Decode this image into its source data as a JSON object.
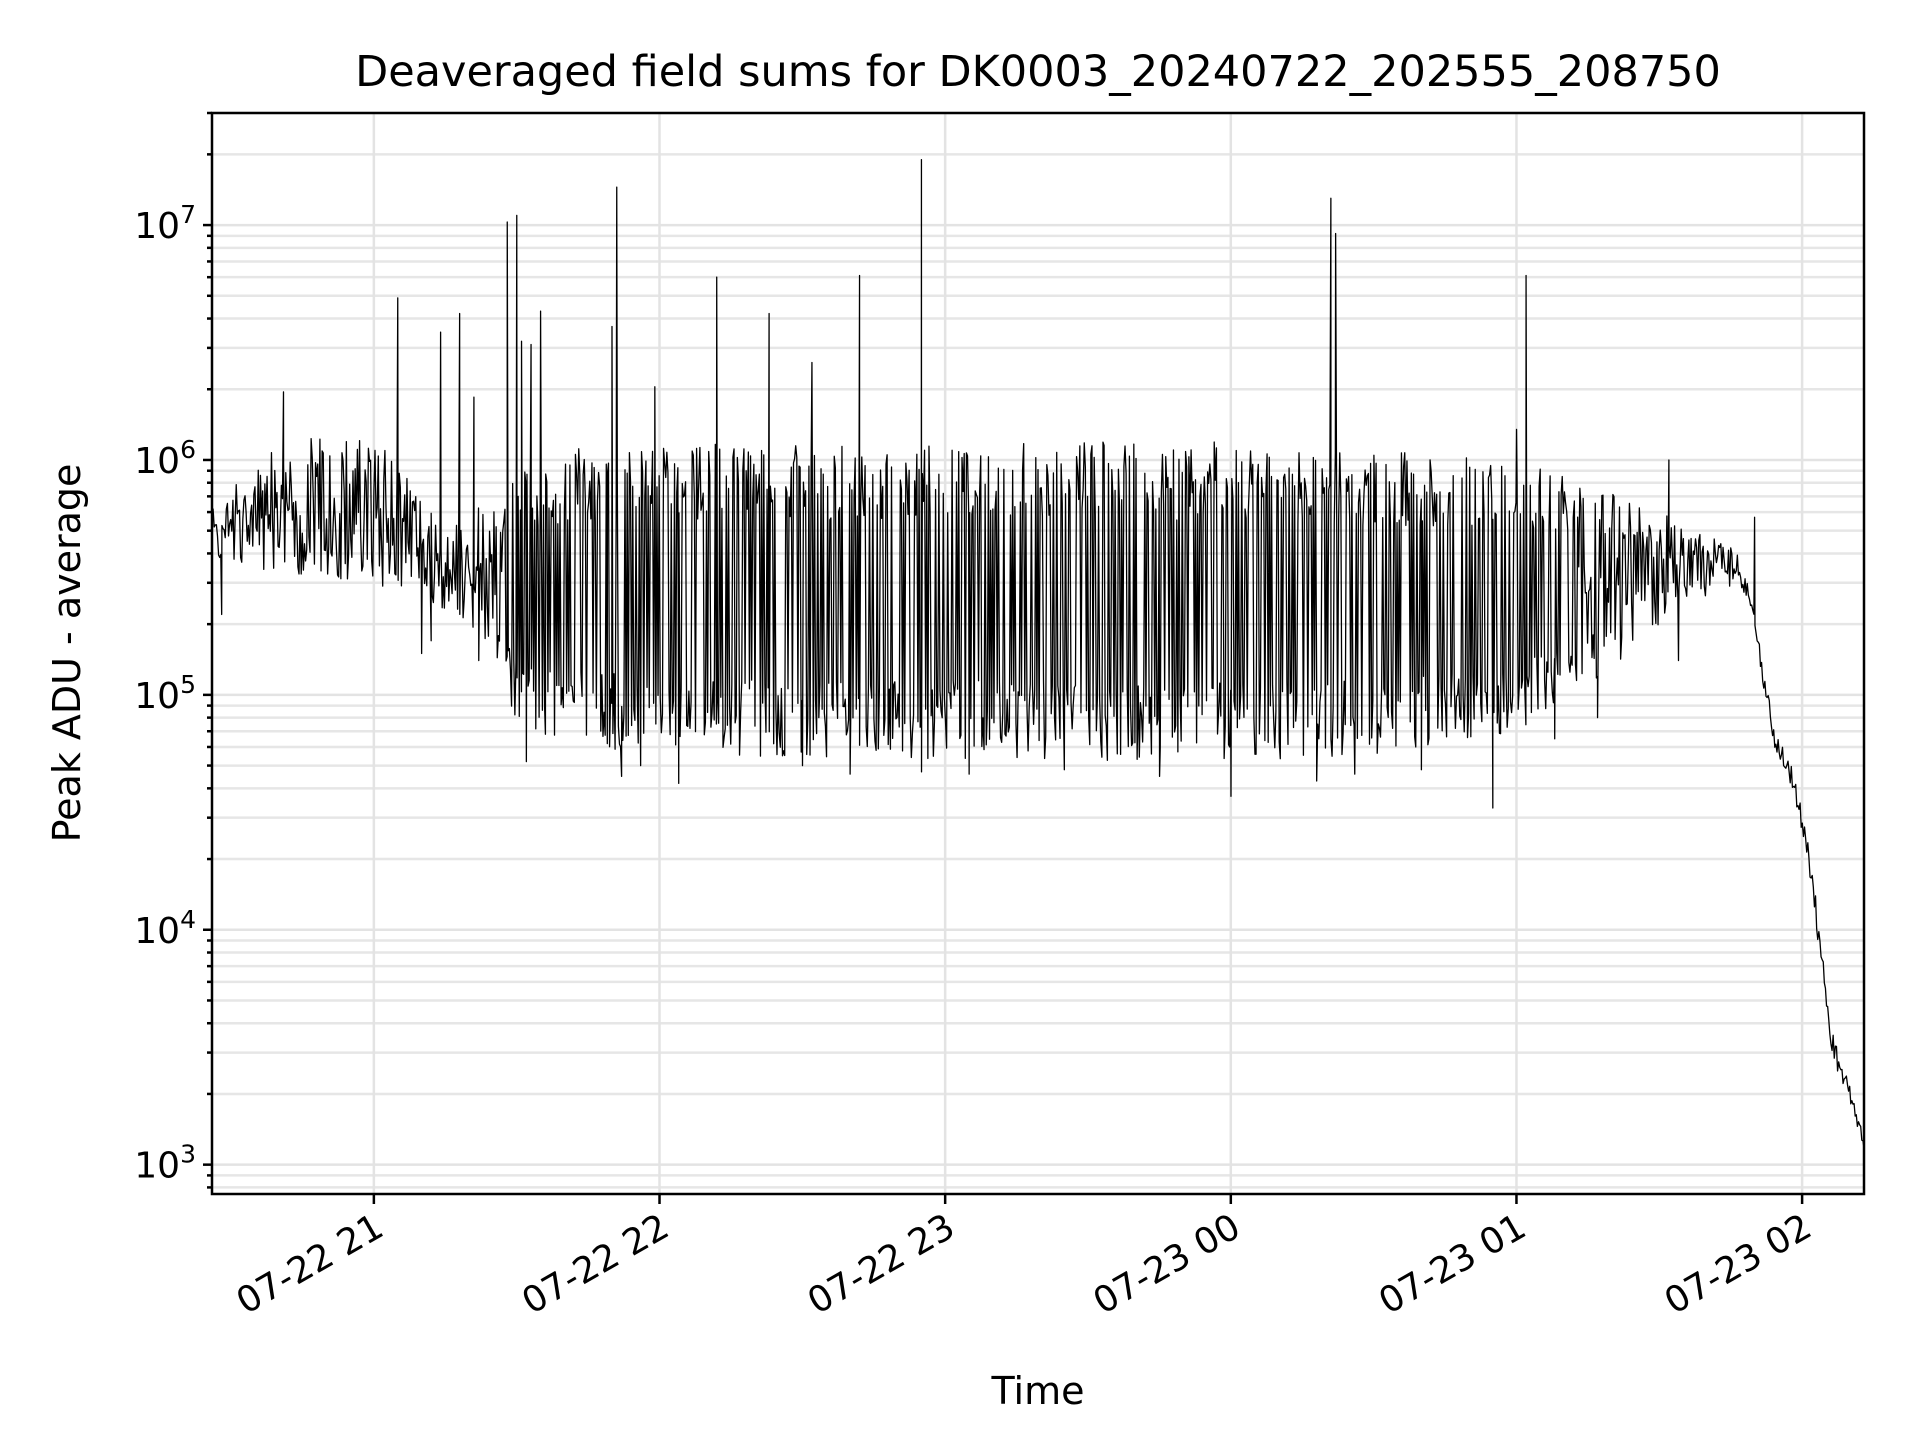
{
  "chart_data": {
    "type": "line",
    "title": "Deaveraged field sums for DK0003_20240722_202555_208750",
    "xlabel": "Time",
    "ylabel": "Peak ADU - average",
    "yscale": "log",
    "grid": "both",
    "x_range": [
      "2024-07-22 20:26",
      "2024-07-23 02:13"
    ],
    "ylim": [
      750,
      30000000
    ],
    "x_ticks": [
      {
        "time": "2024-07-22 21:00",
        "label": "07-22 21"
      },
      {
        "time": "2024-07-22 22:00",
        "label": "07-22 22"
      },
      {
        "time": "2024-07-22 23:00",
        "label": "07-22 23"
      },
      {
        "time": "2024-07-23 00:00",
        "label": "07-23 00"
      },
      {
        "time": "2024-07-23 01:00",
        "label": "07-23 01"
      },
      {
        "time": "2024-07-23 02:00",
        "label": "07-23 02"
      }
    ],
    "y_ticks": [
      {
        "value": 1000,
        "base": "10",
        "exp": "3"
      },
      {
        "value": 10000,
        "base": "10",
        "exp": "4"
      },
      {
        "value": 100000,
        "base": "10",
        "exp": "5"
      },
      {
        "value": 1000000,
        "base": "10",
        "exp": "6"
      },
      {
        "value": 10000000,
        "base": "10",
        "exp": "7"
      }
    ],
    "series": [
      {
        "color": "#000000",
        "envelope": [
          {
            "time": "2024-07-22 20:26",
            "low": 380000,
            "high": 620000
          },
          {
            "time": "2024-07-22 20:40",
            "low": 330000,
            "high": 1200000
          },
          {
            "time": "2024-07-22 21:00",
            "low": 300000,
            "high": 1300000
          },
          {
            "time": "2024-07-22 21:15",
            "low": 230000,
            "high": 500000
          },
          {
            "time": "2024-07-22 21:25",
            "low": 160000,
            "high": 700000
          },
          {
            "time": "2024-07-22 21:30",
            "low": 70000,
            "high": 1000000
          },
          {
            "time": "2024-07-22 21:45",
            "low": 60000,
            "high": 1150000
          },
          {
            "time": "2024-07-22 22:00",
            "low": 55000,
            "high": 1200000
          },
          {
            "time": "2024-07-23 00:00",
            "low": 52000,
            "high": 1200000
          },
          {
            "time": "2024-07-23 00:30",
            "low": 55000,
            "high": 1100000
          },
          {
            "time": "2024-07-23 01:00",
            "low": 70000,
            "high": 1000000
          },
          {
            "time": "2024-07-23 01:20",
            "low": 130000,
            "high": 750000
          },
          {
            "time": "2024-07-23 01:35",
            "low": 250000,
            "high": 550000
          },
          {
            "time": "2024-07-23 01:46",
            "low": 280000,
            "high": 420000
          },
          {
            "time": "2024-07-23 01:49",
            "low": 250000,
            "high": 280000
          },
          {
            "time": "2024-07-23 01:52",
            "low": 100000,
            "high": 130000
          },
          {
            "time": "2024-07-23 01:54",
            "low": 60000,
            "high": 75000
          },
          {
            "time": "2024-07-23 01:58",
            "low": 40000,
            "high": 50000
          },
          {
            "time": "2024-07-23 02:02",
            "low": 15000,
            "high": 20000
          },
          {
            "time": "2024-07-23 02:06",
            "low": 3000,
            "high": 4000
          },
          {
            "time": "2024-07-23 02:10",
            "low": 1800,
            "high": 2200
          },
          {
            "time": "2024-07-23 02:13",
            "low": 1150,
            "high": 1300
          }
        ],
        "spikes": [
          {
            "time": "2024-07-22 20:41",
            "value": 1950000
          },
          {
            "time": "2024-07-22 21:05",
            "value": 4900000
          },
          {
            "time": "2024-07-22 21:14",
            "value": 3500000
          },
          {
            "time": "2024-07-22 21:18",
            "value": 4200000
          },
          {
            "time": "2024-07-22 21:21",
            "value": 1850000
          },
          {
            "time": "2024-07-22 21:28",
            "value": 10300000
          },
          {
            "time": "2024-07-22 21:30",
            "value": 11000000
          },
          {
            "time": "2024-07-22 21:31",
            "value": 3200000
          },
          {
            "time": "2024-07-22 21:33",
            "value": 3100000
          },
          {
            "time": "2024-07-22 21:35",
            "value": 4300000
          },
          {
            "time": "2024-07-22 21:50",
            "value": 3700000
          },
          {
            "time": "2024-07-22 21:51",
            "value": 14500000
          },
          {
            "time": "2024-07-22 21:59",
            "value": 2050000
          },
          {
            "time": "2024-07-22 22:12",
            "value": 6000000
          },
          {
            "time": "2024-07-22 22:23",
            "value": 4200000
          },
          {
            "time": "2024-07-22 22:32",
            "value": 2600000
          },
          {
            "time": "2024-07-22 22:42",
            "value": 6100000
          },
          {
            "time": "2024-07-22 22:55",
            "value": 19000000
          },
          {
            "time": "2024-07-23 00:21",
            "value": 13000000
          },
          {
            "time": "2024-07-23 00:22",
            "value": 9200000
          },
          {
            "time": "2024-07-23 01:00",
            "value": 1350000
          },
          {
            "time": "2024-07-23 01:02",
            "value": 6100000
          },
          {
            "time": "2024-07-23 01:32",
            "value": 1000000
          },
          {
            "time": "2024-07-23 01:50",
            "value": 570000
          }
        ],
        "dips": [
          {
            "time": "2024-07-22 20:28",
            "value": 220000
          },
          {
            "time": "2024-07-22 21:10",
            "value": 150000
          },
          {
            "time": "2024-07-22 21:12",
            "value": 170000
          },
          {
            "time": "2024-07-22 21:22",
            "value": 140000
          },
          {
            "time": "2024-07-22 21:32",
            "value": 52000
          },
          {
            "time": "2024-07-22 21:36",
            "value": 68000
          },
          {
            "time": "2024-07-22 21:49",
            "value": 62000
          },
          {
            "time": "2024-07-22 21:52",
            "value": 45000
          },
          {
            "time": "2024-07-22 21:56",
            "value": 50000
          },
          {
            "time": "2024-07-22 22:04",
            "value": 42000
          },
          {
            "time": "2024-07-22 22:30",
            "value": 50000
          },
          {
            "time": "2024-07-22 22:40",
            "value": 46000
          },
          {
            "time": "2024-07-22 22:55",
            "value": 47000
          },
          {
            "time": "2024-07-22 23:05",
            "value": 46000
          },
          {
            "time": "2024-07-22 23:25",
            "value": 48000
          },
          {
            "time": "2024-07-22 23:45",
            "value": 45000
          },
          {
            "time": "2024-07-23 00:00",
            "value": 37000
          },
          {
            "time": "2024-07-23 00:18",
            "value": 43000
          },
          {
            "time": "2024-07-23 00:26",
            "value": 46000
          },
          {
            "time": "2024-07-23 00:40",
            "value": 48000
          },
          {
            "time": "2024-07-23 00:55",
            "value": 33000
          },
          {
            "time": "2024-07-23 01:08",
            "value": 65000
          },
          {
            "time": "2024-07-23 01:17",
            "value": 80000
          },
          {
            "time": "2024-07-23 01:34",
            "value": 140000
          }
        ]
      }
    ]
  }
}
